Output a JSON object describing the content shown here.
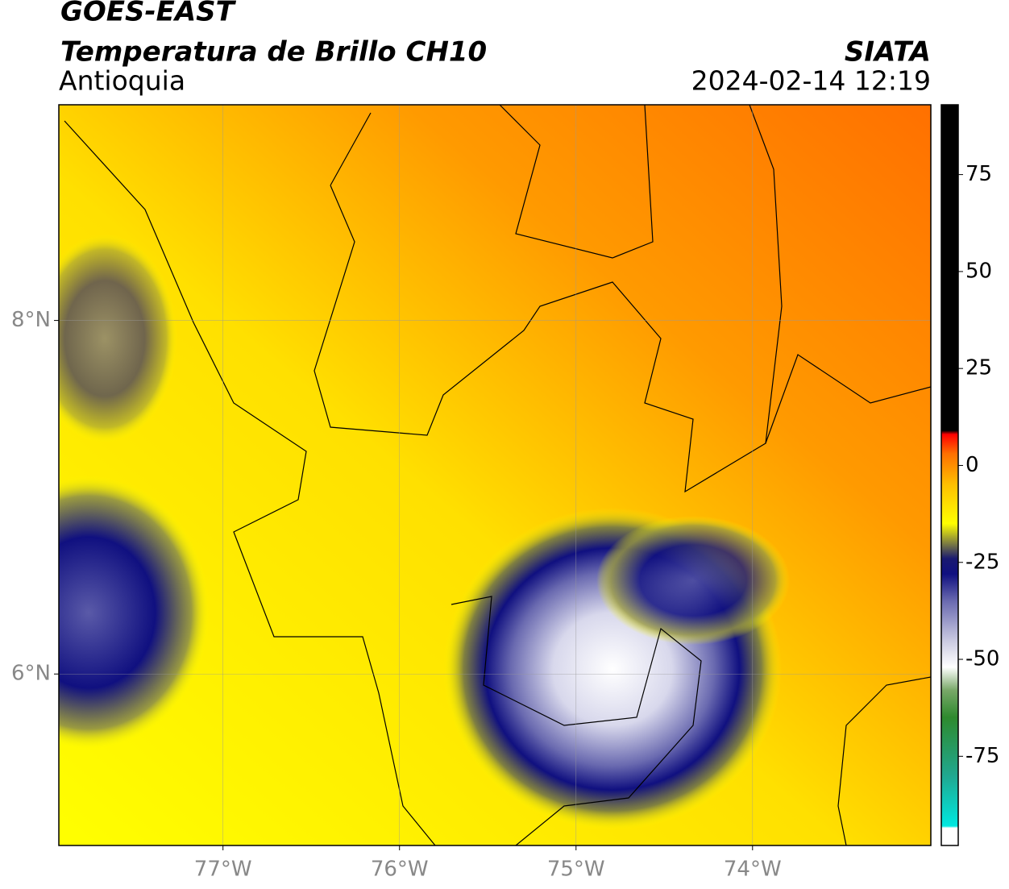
{
  "header": {
    "title": "GOES-EAST",
    "subtitle": "Temperatura de Brillo CH10",
    "region": "Antioquia",
    "agency": "SIATA",
    "datetime": "2024-02-14 12:19"
  },
  "map": {
    "xlim": [
      -77.93,
      -72.99
    ],
    "ylim": [
      5.03,
      9.22
    ],
    "xticks": [
      {
        "value": -77,
        "label": "77°W"
      },
      {
        "value": -76,
        "label": "76°W"
      },
      {
        "value": -75,
        "label": "75°W"
      },
      {
        "value": -74,
        "label": "74°W"
      }
    ],
    "yticks": [
      {
        "value": 6,
        "label": "6°N"
      },
      {
        "value": 8,
        "label": "8°N"
      }
    ]
  },
  "colorbar": {
    "lim": [
      -98,
      93
    ],
    "ticks": [
      -75,
      -50,
      -25,
      0,
      25,
      50,
      75
    ],
    "stops": [
      {
        "value": -98,
        "color": "#ffffff"
      },
      {
        "value": -93.5,
        "color": "#ffffff"
      },
      {
        "value": -93,
        "color": "#00e8e0"
      },
      {
        "value": -80,
        "color": "#20a890"
      },
      {
        "value": -65,
        "color": "#2e8a2e"
      },
      {
        "value": -58,
        "color": "#78a868"
      },
      {
        "value": -52,
        "color": "#ffffff"
      },
      {
        "value": -45,
        "color": "#c8c8e0"
      },
      {
        "value": -35,
        "color": "#6a6ab0"
      },
      {
        "value": -28,
        "color": "#101080"
      },
      {
        "value": -24,
        "color": "#1a1a70"
      },
      {
        "value": -20,
        "color": "#808040"
      },
      {
        "value": -15,
        "color": "#ffff00"
      },
      {
        "value": -5,
        "color": "#ffc000"
      },
      {
        "value": 3,
        "color": "#ff7000"
      },
      {
        "value": 8,
        "color": "#ff0000"
      },
      {
        "value": 9,
        "color": "#000000"
      },
      {
        "value": 93,
        "color": "#000000"
      }
    ]
  }
}
